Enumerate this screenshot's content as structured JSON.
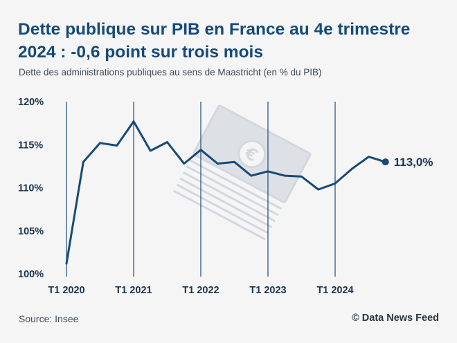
{
  "title": "Dette publique sur PIB en France au 4e trimestre 2024 : -0,6 point sur trois mois",
  "subtitle": "Dette des administrations publiques au sens de Maastricht (en % du PIB)",
  "source": "Source: Insee",
  "credit": "© Data News Feed",
  "decoration_icon": "euro-banknote-stack-icon",
  "colors": {
    "line": "#164a78",
    "text": "#1b3550",
    "background": "#f5f5f6",
    "decoration": "#d3d8de"
  },
  "chart_data": {
    "type": "line",
    "x": [
      "T1 2020",
      "T2 2020",
      "T3 2020",
      "T4 2020",
      "T1 2021",
      "T2 2021",
      "T3 2021",
      "T4 2021",
      "T1 2022",
      "T2 2022",
      "T3 2022",
      "T4 2022",
      "T1 2023",
      "T2 2023",
      "T3 2023",
      "T4 2023",
      "T1 2024",
      "T2 2024",
      "T3 2024",
      "T4 2024"
    ],
    "values": [
      101.2,
      113.0,
      115.2,
      114.9,
      117.7,
      114.3,
      115.3,
      112.8,
      114.4,
      112.8,
      113.0,
      111.4,
      111.9,
      111.4,
      111.3,
      109.8,
      110.5,
      112.2,
      113.6,
      113.0
    ],
    "xticks": [
      "T1 2020",
      "T1 2021",
      "T1 2022",
      "T1 2023",
      "T1 2024"
    ],
    "yticks": [
      "100%",
      "105%",
      "110%",
      "115%",
      "120%"
    ],
    "ylim": [
      100,
      120
    ],
    "end_label": "113,0%",
    "grid": "vertical lines at T1 of each year"
  }
}
